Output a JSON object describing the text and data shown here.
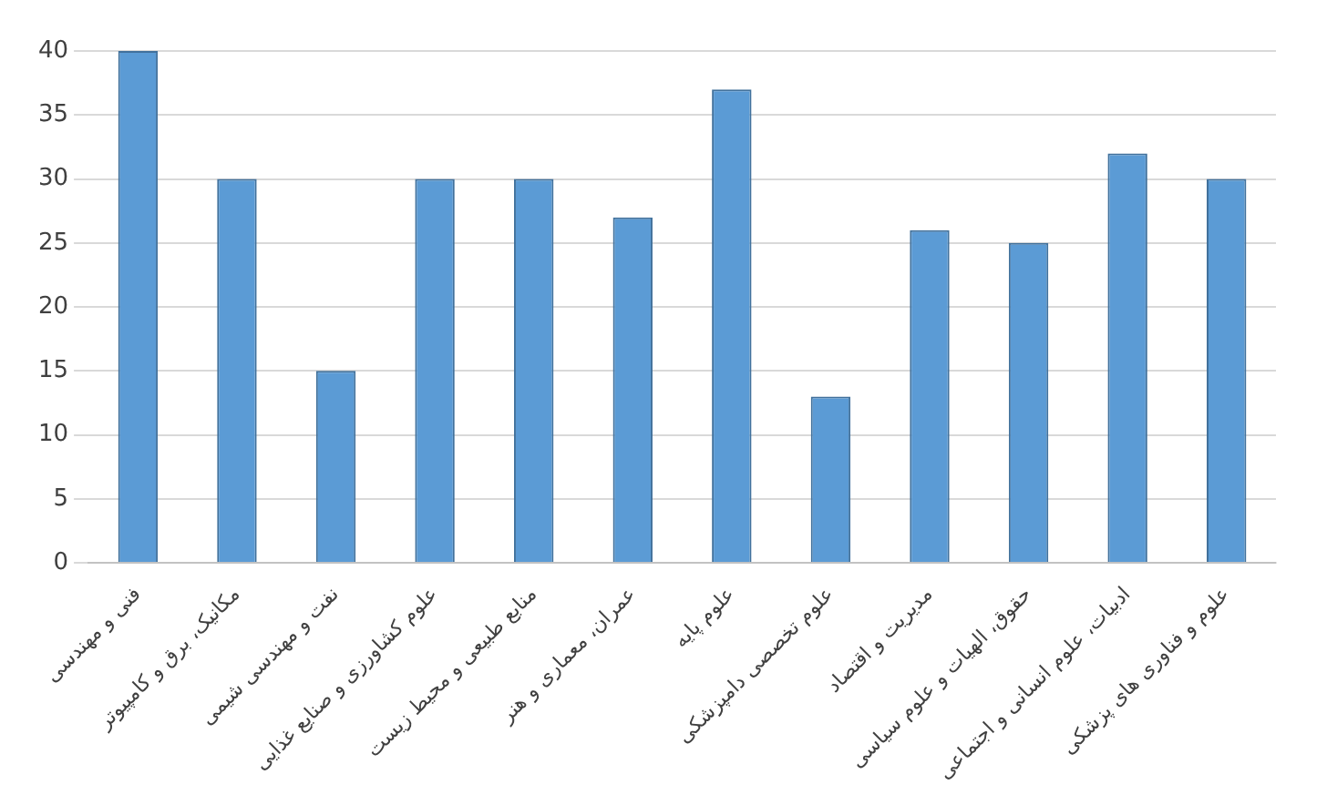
{
  "chart_data": {
    "type": "bar",
    "categories": [
      "فنی و مهندسی",
      "مکانیک، برق و کامپیوتر",
      "نفت و مهندسی شیمی",
      "علوم کشاورزی و صنایع غذایی",
      "منابع طبیعی و محیط زیست",
      "عمران، معماری و هنر",
      "علوم پایه",
      "علوم تخصصی دامپزشکی",
      "مدیریت و اقتصاد",
      "حقوق، الهیات و علوم سیاسی",
      "ادبیات، علوم انسانی و اجتماعی",
      "علوم و فناوری های پزشکی"
    ],
    "values": [
      40,
      30,
      15,
      30,
      30,
      27,
      37,
      13,
      26,
      25,
      32,
      30
    ],
    "color": "#5b9bd5",
    "ylim": [
      0,
      40
    ],
    "yticks": [
      0,
      5,
      10,
      15,
      20,
      25,
      30,
      35,
      40
    ],
    "grid": "y",
    "legend": false
  }
}
